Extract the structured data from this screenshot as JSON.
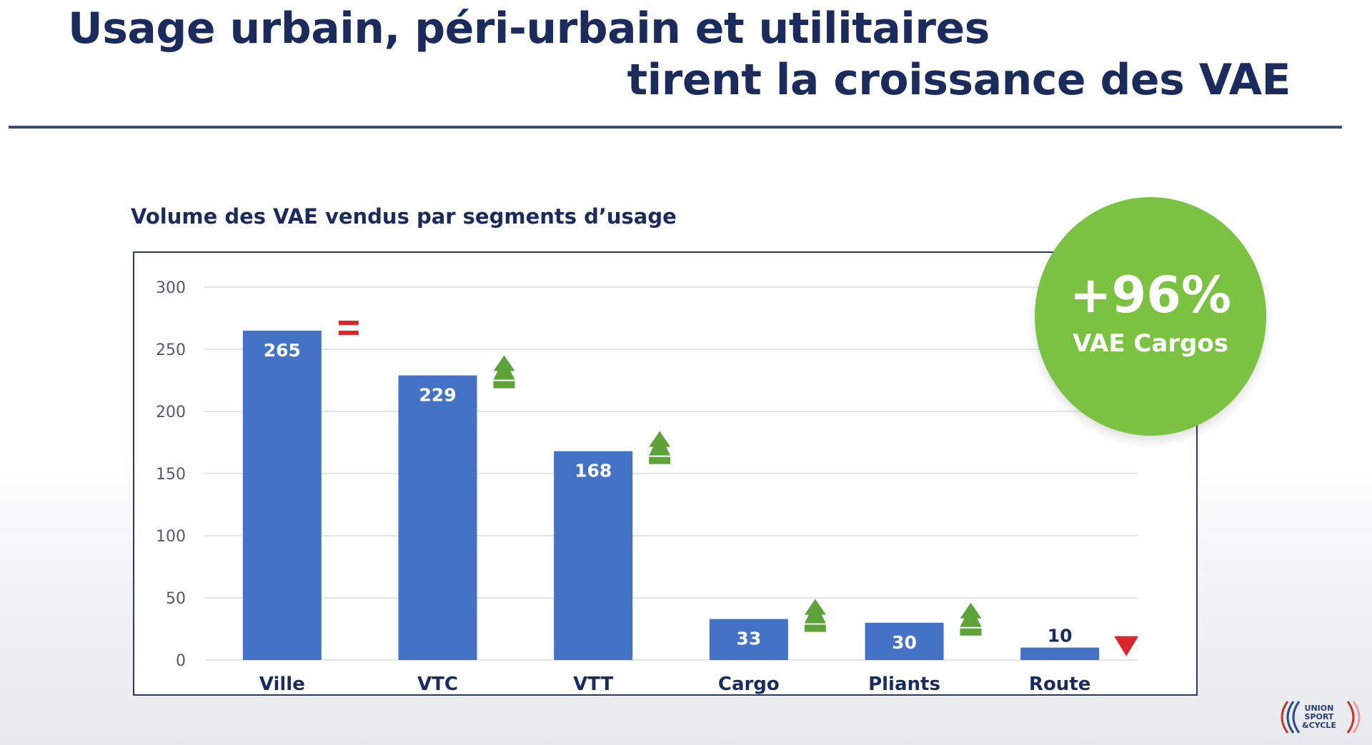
{
  "slide": {
    "title_line1": "Usage urbain, péri-urbain et utilitaires",
    "title_line2": "tirent la croissance des VAE"
  },
  "badge": {
    "value": "+96%",
    "label": "VAE Cargos"
  },
  "logo": {
    "line1": "UNION",
    "line2": "SPORT",
    "line3": "&CYCLE"
  },
  "chart_data": {
    "type": "bar",
    "title": "Volume des VAE vendus par segments d’usage",
    "xlabel": "",
    "ylabel": "",
    "categories": [
      "Ville",
      "VTC",
      "VTT",
      "Cargo",
      "Pliants",
      "Route"
    ],
    "values": [
      265,
      229,
      168,
      33,
      30,
      10
    ],
    "data_labels": [
      "265",
      "229",
      "168",
      "33",
      "30",
      "10"
    ],
    "trends": [
      "equal",
      "up",
      "up",
      "up",
      "up",
      "down"
    ],
    "ylim": [
      0,
      300
    ],
    "yticks": [
      0,
      50,
      100,
      150,
      200,
      250,
      300
    ],
    "grid": true,
    "bar_color": "#4472c4",
    "trend_colors": {
      "equal": "#d9252a",
      "up": "#5ea23a",
      "down": "#d9252a"
    }
  }
}
